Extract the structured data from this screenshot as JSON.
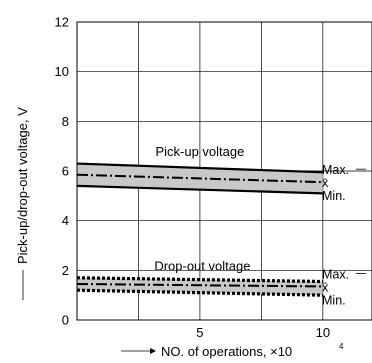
{
  "chart_data": {
    "type": "line",
    "title": "",
    "xlabel": "NO. of operations, ×10",
    "xlabel_exponent": "4",
    "ylabel": "Pick-up/drop-out voltage, V",
    "xlim": [
      0,
      12
    ],
    "ylim": [
      0,
      12
    ],
    "x_ticks": [
      5,
      10
    ],
    "y_ticks": [
      0,
      2,
      4,
      6,
      8,
      10,
      12
    ],
    "grid": true,
    "band_fill": "#c8c8c8",
    "groups": [
      {
        "label": "Pick-up voltage",
        "marker_labels": [
          "Max.",
          "x̄",
          "Min."
        ],
        "series": [
          {
            "name": "Max.",
            "style": "solid",
            "x": [
              0,
              10
            ],
            "y": [
              6.3,
              5.95
            ]
          },
          {
            "name": "x̄",
            "style": "dash-dot",
            "x": [
              0,
              10
            ],
            "y": [
              5.85,
              5.55
            ]
          },
          {
            "name": "Min.",
            "style": "solid",
            "x": [
              0,
              10
            ],
            "y": [
              5.4,
              5.1
            ]
          }
        ]
      },
      {
        "label": "Drop-out voltage",
        "marker_labels": [
          "Max.",
          "x̄",
          "Min."
        ],
        "series": [
          {
            "name": "Max.",
            "style": "dotted",
            "x": [
              0,
              10
            ],
            "y": [
              1.7,
              1.55
            ]
          },
          {
            "name": "x̄",
            "style": "dash-dot",
            "x": [
              0,
              10
            ],
            "y": [
              1.45,
              1.35
            ]
          },
          {
            "name": "Min.",
            "style": "dotted",
            "x": [
              0,
              10
            ],
            "y": [
              1.2,
              1.0
            ]
          }
        ]
      }
    ]
  }
}
